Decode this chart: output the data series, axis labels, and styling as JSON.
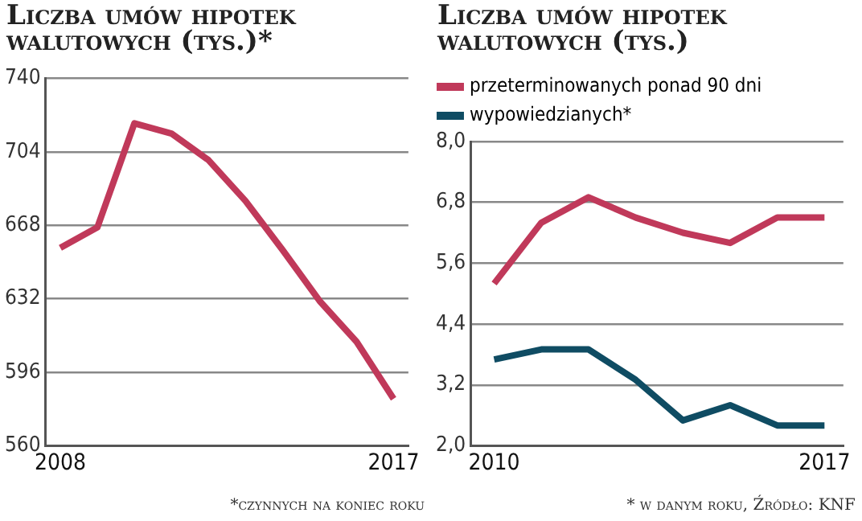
{
  "chart_data": [
    {
      "type": "line",
      "title": "Liczba umów hipotek walutowych (tys.)*",
      "x": [
        2008,
        2009,
        2010,
        2011,
        2012,
        2013,
        2014,
        2015,
        2016,
        2017
      ],
      "series": [
        {
          "color": "#c0395a",
          "values": [
            657,
            667,
            718,
            713,
            700,
            680,
            656,
            631,
            611,
            583
          ]
        }
      ],
      "xlim": [
        2007.6,
        2017.4
      ],
      "xticks": [
        2008,
        2017
      ],
      "ylim": [
        560,
        740
      ],
      "yticks": [
        560,
        596,
        632,
        668,
        704,
        740
      ],
      "grid": "y",
      "legend": false,
      "marker": "none",
      "line_style": "solid",
      "annotations": [
        "*czynnych na koniec roku"
      ]
    },
    {
      "type": "line",
      "title": "Liczba umów hipotek walutowych (tys.)",
      "x": [
        2010,
        2011,
        2012,
        2013,
        2014,
        2015,
        2016,
        2017
      ],
      "series": [
        {
          "name": "przeterminowanych ponad 90 dni",
          "color": "#c0395a",
          "values": [
            5.2,
            6.4,
            6.9,
            6.5,
            6.2,
            6.0,
            6.5,
            6.5
          ]
        },
        {
          "name": "wypowiedzianych*",
          "color": "#0f4c63",
          "values": [
            3.7,
            3.9,
            3.9,
            3.3,
            2.5,
            2.8,
            2.4,
            2.4
          ]
        }
      ],
      "xlim": [
        2009.5,
        2017.4
      ],
      "xticks": [
        2010,
        2017
      ],
      "ylim": [
        2,
        8
      ],
      "yticks": [
        {
          "value": 2,
          "label": "2,0"
        },
        {
          "value": 3.2,
          "label": "3,2"
        },
        {
          "value": 4.4,
          "label": "4,4"
        },
        {
          "value": 5.6,
          "label": "5,6"
        },
        {
          "value": 6.8,
          "label": "6,8"
        },
        {
          "value": 8,
          "label": "8,0"
        }
      ],
      "grid": "y",
      "legend": "top",
      "marker": "none",
      "line_style": "solid",
      "annotations": [
        "* w danym roku, Źródło: KNF"
      ]
    }
  ]
}
